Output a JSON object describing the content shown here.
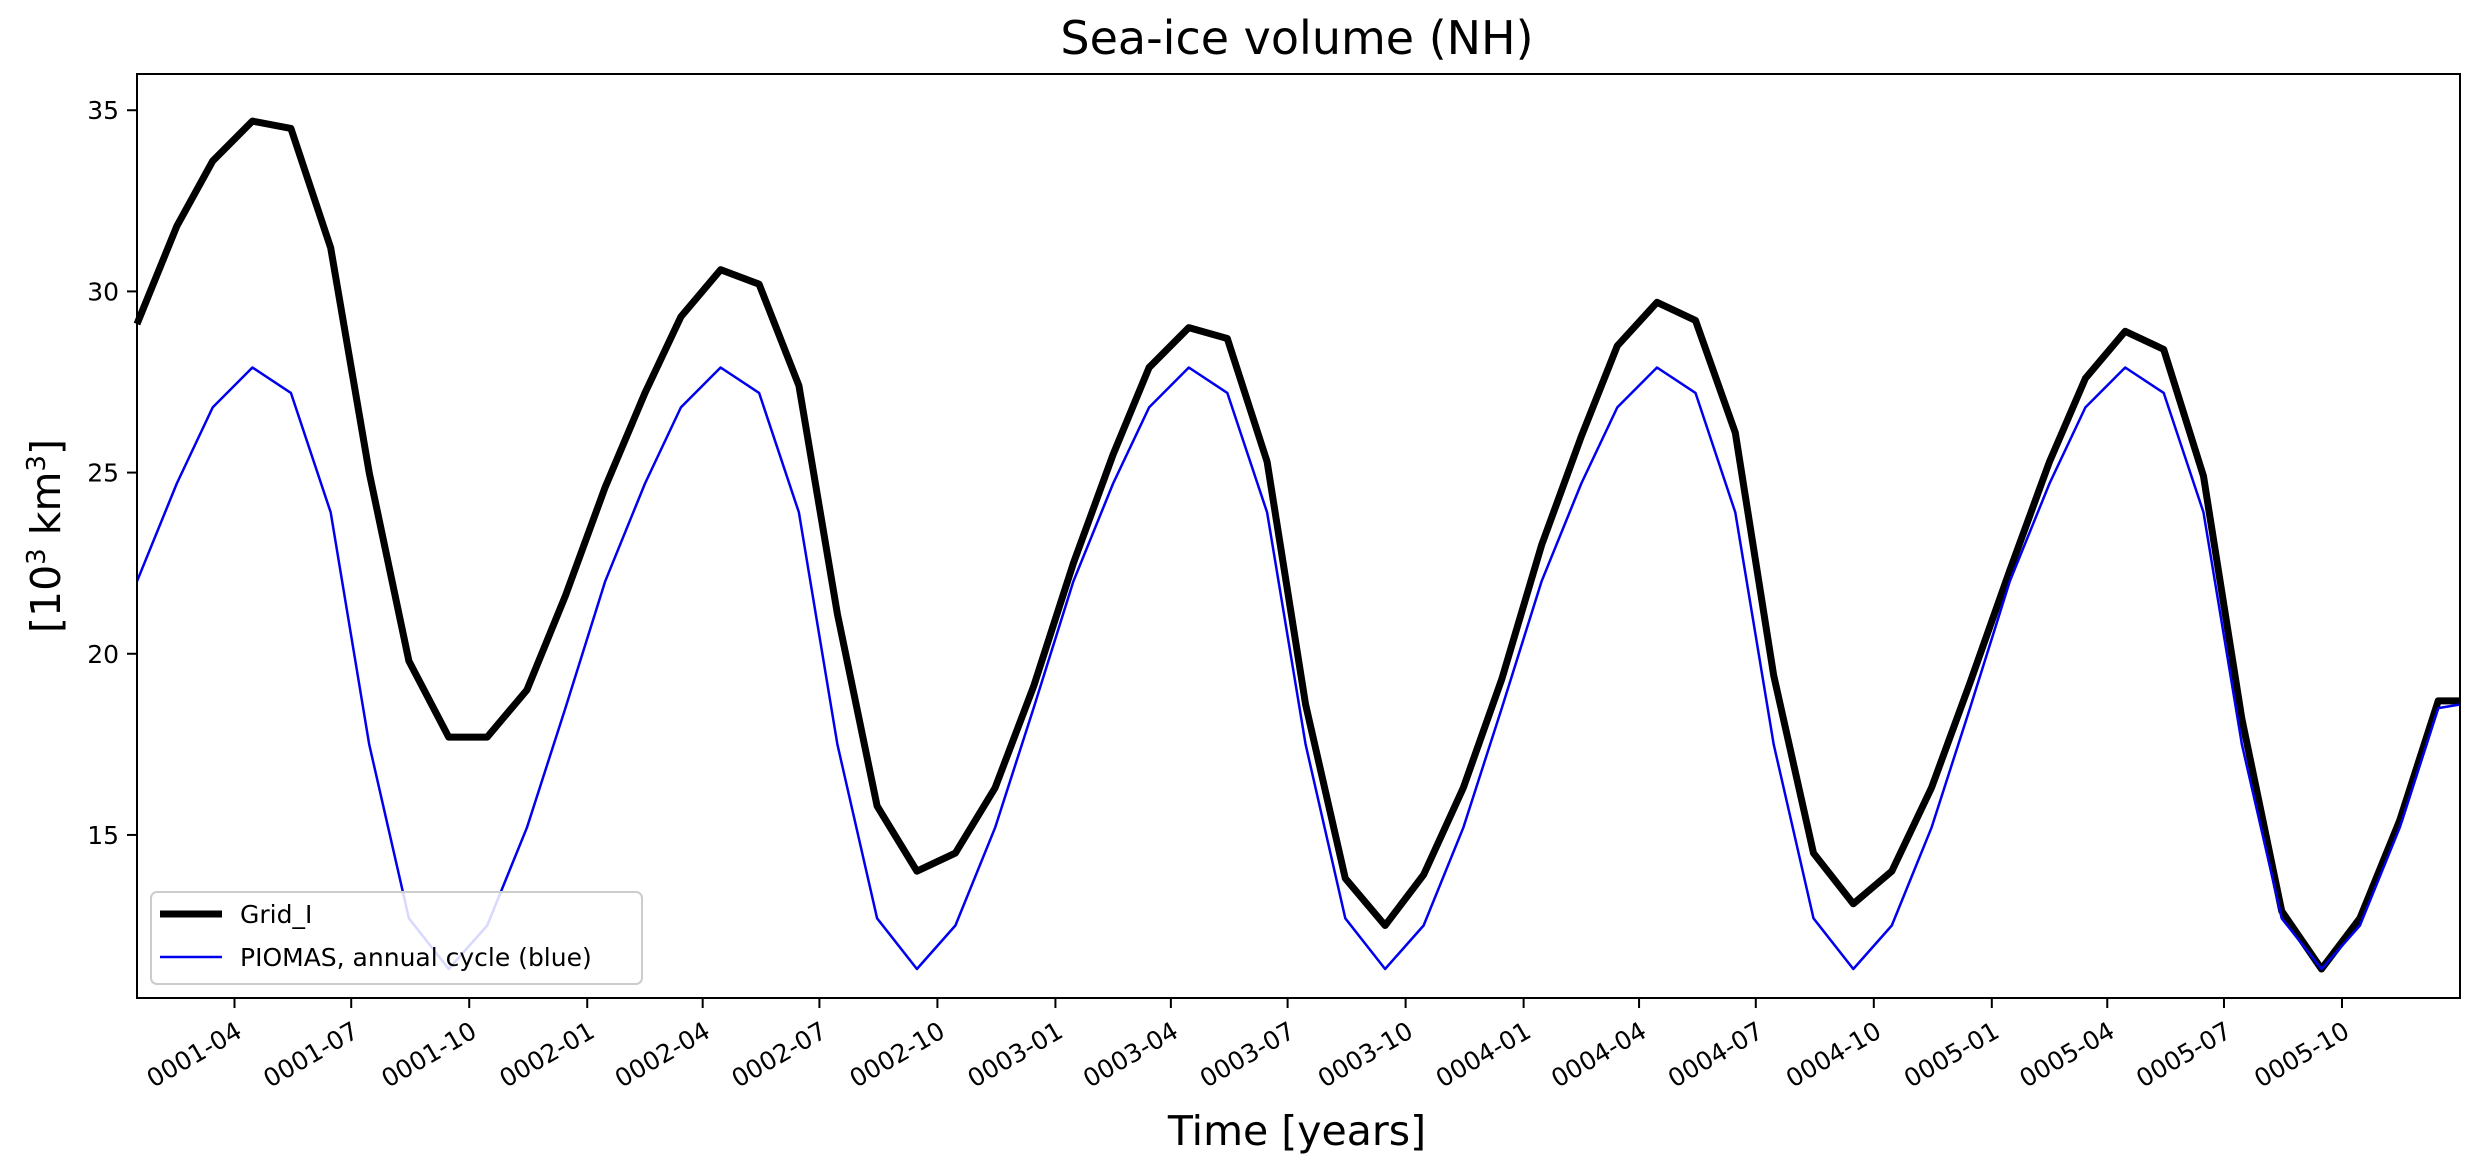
{
  "chart_data": {
    "type": "line",
    "title": "Sea-ice volume (NH)",
    "xlabel": "Time [years]",
    "ylabel": "[10³ km³]",
    "ylabel_parts": {
      "pre": "[10",
      "sup1": "3",
      "mid": " km",
      "sup2": "3",
      "post": "]"
    },
    "ylim": [
      10.5,
      36.0
    ],
    "xlim": [
      "0001-01-15",
      "0006-01-01"
    ],
    "yticks": [
      15,
      20,
      25,
      30,
      35
    ],
    "xticks": [
      "0001-04",
      "0001-07",
      "0001-10",
      "0002-01",
      "0002-04",
      "0002-07",
      "0002-10",
      "0003-01",
      "0003-04",
      "0003-07",
      "0003-10",
      "0004-01",
      "0004-04",
      "0004-07",
      "0004-10",
      "0005-01",
      "0005-04",
      "0005-07",
      "0005-10"
    ],
    "grid": false,
    "legend": "lower-left",
    "x": [
      "0001-01-15",
      "0001-02-15",
      "0001-03-15",
      "0001-04-15",
      "0001-05-15",
      "0001-06-15",
      "0001-07-15",
      "0001-08-15",
      "0001-09-15",
      "0001-10-15",
      "0001-11-15",
      "0001-12-15",
      "0002-01-15",
      "0002-02-15",
      "0002-03-15",
      "0002-04-15",
      "0002-05-15",
      "0002-06-15",
      "0002-07-15",
      "0002-08-15",
      "0002-09-15",
      "0002-10-15",
      "0002-11-15",
      "0002-12-15",
      "0003-01-15",
      "0003-02-15",
      "0003-03-15",
      "0003-04-15",
      "0003-05-15",
      "0003-06-15",
      "0003-07-15",
      "0003-08-15",
      "0003-09-15",
      "0003-10-15",
      "0003-11-15",
      "0003-12-15",
      "0004-01-15",
      "0004-02-15",
      "0004-03-15",
      "0004-04-15",
      "0004-05-15",
      "0004-06-15",
      "0004-07-15",
      "0004-08-15",
      "0004-09-15",
      "0004-10-15",
      "0004-11-15",
      "0004-12-15",
      "0005-01-15",
      "0005-02-15",
      "0005-03-15",
      "0005-04-15",
      "0005-05-15",
      "0005-06-15",
      "0005-07-15",
      "0005-08-15",
      "0005-09-15",
      "0005-10-15",
      "0005-11-15",
      "0005-12-15",
      "0006-01-01"
    ],
    "series": [
      {
        "name": "Grid_I",
        "color": "#000000",
        "values": [
          29.1,
          31.8,
          33.6,
          34.7,
          34.5,
          31.2,
          25.0,
          19.8,
          17.7,
          17.7,
          19.0,
          21.6,
          24.6,
          27.2,
          29.3,
          30.6,
          30.2,
          27.4,
          21.1,
          15.8,
          14.0,
          14.5,
          16.3,
          19.1,
          22.5,
          25.5,
          27.9,
          29.0,
          28.7,
          25.3,
          18.6,
          13.8,
          12.5,
          13.9,
          16.3,
          19.3,
          23.0,
          26.0,
          28.5,
          29.7,
          29.2,
          26.1,
          19.4,
          14.5,
          13.1,
          14.0,
          16.3,
          19.2,
          22.3,
          25.3,
          27.6,
          28.9,
          28.4,
          24.9,
          18.2,
          12.9,
          11.3,
          12.7,
          15.4,
          18.7,
          18.7
        ]
      },
      {
        "name": "PIOMAS, annual cycle (blue)",
        "color": "#0000ee",
        "values": [
          22.0,
          24.7,
          26.8,
          27.9,
          27.2,
          23.9,
          17.5,
          12.7,
          11.3,
          12.5,
          15.2,
          18.5,
          22.0,
          24.7,
          26.8,
          27.9,
          27.2,
          23.9,
          17.5,
          12.7,
          11.3,
          12.5,
          15.2,
          18.5,
          22.0,
          24.7,
          26.8,
          27.9,
          27.2,
          23.9,
          17.5,
          12.7,
          11.3,
          12.5,
          15.2,
          18.5,
          22.0,
          24.7,
          26.8,
          27.9,
          27.2,
          23.9,
          17.5,
          12.7,
          11.3,
          12.5,
          15.2,
          18.5,
          22.0,
          24.7,
          26.8,
          27.9,
          27.2,
          23.9,
          17.5,
          12.7,
          11.3,
          12.5,
          15.2,
          18.5,
          18.6
        ]
      }
    ]
  }
}
